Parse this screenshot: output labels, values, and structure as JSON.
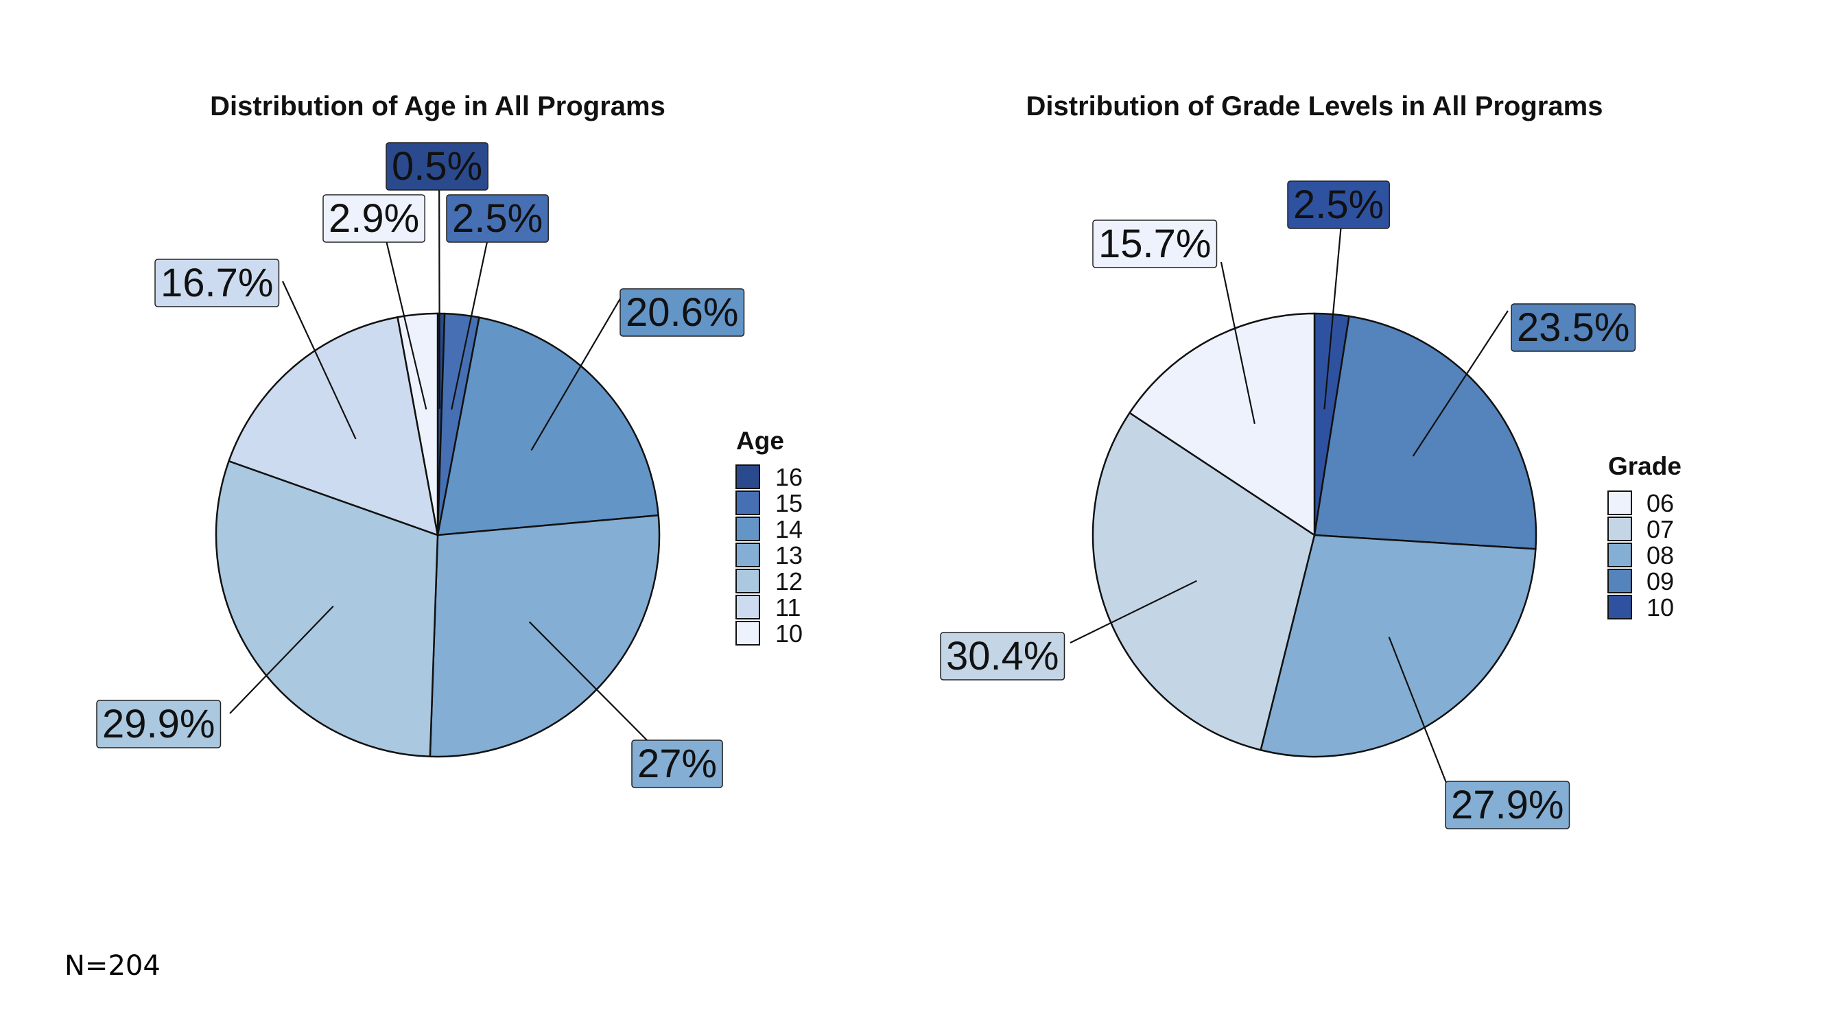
{
  "note": "N=204",
  "chart_data": [
    {
      "type": "pie",
      "title": "Distribution of Age in All Programs",
      "legend_title": "Age",
      "legend_position": "right",
      "categories": [
        "16",
        "15",
        "14",
        "13",
        "12",
        "11",
        "10"
      ],
      "values": [
        0.5,
        2.5,
        20.6,
        27,
        29.9,
        16.7,
        2.9
      ],
      "labels": [
        "0.5%",
        "2.5%",
        "20.6%",
        "27%",
        "29.9%",
        "16.7%",
        "2.9%"
      ],
      "colors": [
        "#2b4a8e",
        "#4670b3",
        "#6395c7",
        "#84aed3",
        "#aac8df",
        "#ccdbef",
        "#eef2fd"
      ],
      "legend_order": [
        "16",
        "15",
        "14",
        "13",
        "12",
        "11",
        "10"
      ]
    },
    {
      "type": "pie",
      "title": "Distribution of Grade Levels in All Programs",
      "legend_title": "Grade",
      "legend_position": "right",
      "categories": [
        "10",
        "09",
        "08",
        "07",
        "06"
      ],
      "values": [
        2.5,
        23.5,
        27.9,
        30.4,
        15.7
      ],
      "labels": [
        "2.5%",
        "23.5%",
        "27.9%",
        "30.4%",
        "15.7%"
      ],
      "colors": [
        "#2f52a0",
        "#5583bb",
        "#84aed3",
        "#c4d6e6",
        "#eef2fd"
      ],
      "legend_order": [
        "06",
        "07",
        "08",
        "09",
        "10"
      ]
    }
  ]
}
